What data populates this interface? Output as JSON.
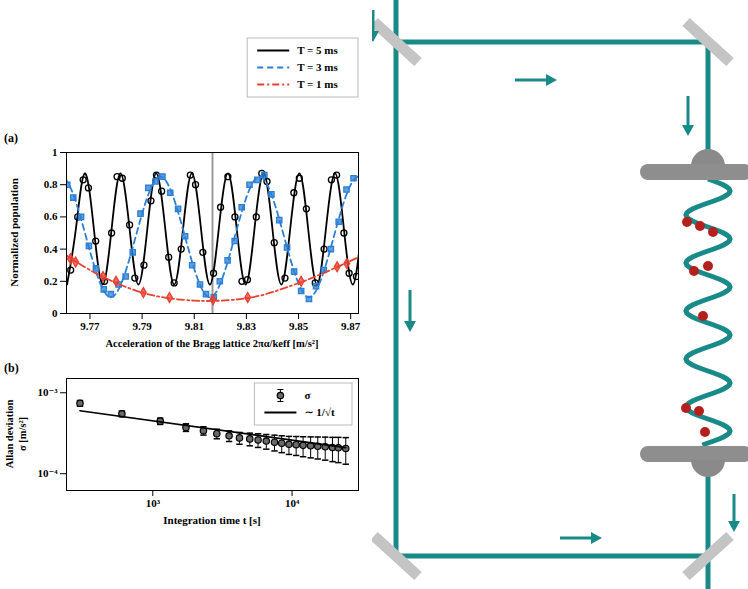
{
  "chart_data": [
    {
      "type": "line",
      "panel_label": "(a)",
      "xlabel": "Acceleration of the Bragg lattice 2πα/keff [m/s²]",
      "ylabel": "Normalized population",
      "xlim": [
        9.761,
        9.873
      ],
      "xticks": [
        9.77,
        9.79,
        9.81,
        9.83,
        9.85,
        9.87
      ],
      "ylim": [
        0,
        1
      ],
      "yticks": [
        0,
        0.2,
        0.4,
        0.6,
        0.8,
        1
      ],
      "legend": "above",
      "vline": 9.817,
      "series": [
        {
          "name": "T = 5 ms",
          "color": "#000000",
          "line_style": "solid",
          "marker": "circle",
          "curve": {
            "x": [
              9.7612,
              9.7646,
              9.768,
              9.7715,
              9.7749,
              9.7783,
              9.7817,
              9.7852,
              9.7886,
              9.792,
              9.7954,
              9.7989,
              9.8023,
              9.8057,
              9.8091,
              9.8126,
              9.816,
              9.8194,
              9.8229,
              9.8263,
              9.8297,
              9.8331,
              9.8366,
              9.84,
              9.8434,
              9.8468,
              9.8503,
              9.8537,
              9.8571,
              9.8605,
              9.864,
              9.8674,
              9.8708,
              9.8742
            ],
            "values": [
              0.18,
              0.525,
              0.87,
              0.525,
              0.18,
              0.525,
              0.87,
              0.525,
              0.18,
              0.525,
              0.87,
              0.525,
              0.18,
              0.525,
              0.87,
              0.525,
              0.18,
              0.525,
              0.87,
              0.525,
              0.18,
              0.525,
              0.87,
              0.525,
              0.18,
              0.525,
              0.87,
              0.525,
              0.18,
              0.525,
              0.87,
              0.525,
              0.18,
              0.525
            ]
          },
          "points": {
            "x": [
              9.7626,
              9.7653,
              9.7674,
              9.7694,
              9.7722,
              9.7756,
              9.7783,
              9.7804,
              9.7824,
              9.7852,
              9.7872,
              9.7907,
              9.7934,
              9.7955,
              9.7975,
              9.8002,
              9.8023,
              9.805,
              9.8085,
              9.8105,
              9.8133,
              9.8174,
              9.8201,
              9.8229,
              9.8256,
              9.8283,
              9.8304,
              9.8338,
              9.8359,
              9.8379,
              9.8407,
              9.8448,
              9.8482,
              9.8503,
              9.853,
              9.8564,
              9.8598,
              9.8626,
              9.8646,
              9.8674,
              9.8694,
              9.8722
            ],
            "values": [
              0.27,
              0.6,
              0.83,
              0.78,
              0.45,
              0.2,
              0.5,
              0.85,
              0.84,
              0.55,
              0.22,
              0.3,
              0.7,
              0.86,
              0.76,
              0.35,
              0.19,
              0.4,
              0.86,
              0.8,
              0.38,
              0.25,
              0.66,
              0.85,
              0.6,
              0.2,
              0.21,
              0.6,
              0.87,
              0.82,
              0.44,
              0.22,
              0.75,
              0.84,
              0.65,
              0.19,
              0.4,
              0.83,
              0.86,
              0.5,
              0.25,
              0.23
            ]
          }
        },
        {
          "name": "T = 3 ms",
          "color": "#2b7fd4",
          "line_style": "dashed",
          "marker": "square",
          "curve": {
            "x": [
              9.7495,
              9.759,
              9.7685,
              9.778,
              9.7875,
              9.797,
              9.8065,
              9.816,
              9.8255,
              9.835,
              9.8445,
              9.854,
              9.8635,
              9.873,
              9.8825
            ],
            "values": [
              0.475,
              0.85,
              0.475,
              0.1,
              0.475,
              0.85,
              0.475,
              0.1,
              0.475,
              0.85,
              0.475,
              0.1,
              0.475,
              0.85,
              0.475
            ]
          },
          "points": {
            "x": [
              9.7613,
              9.7636,
              9.7666,
              9.7696,
              9.7723,
              9.7753,
              9.778,
              9.781,
              9.7837,
              9.7864,
              9.7894,
              9.7924,
              9.7951,
              9.7978,
              9.8008,
              9.8038,
              9.8065,
              9.8092,
              9.8122,
              9.8145,
              9.8175,
              9.8198,
              9.8228,
              9.8255,
              9.8282,
              9.8312,
              9.8342,
              9.8369,
              9.8396,
              9.8426,
              9.8456,
              9.8483,
              9.851,
              9.854,
              9.8567,
              9.8597,
              9.8624,
              9.8654,
              9.8684,
              9.8711
            ],
            "values": [
              0.8,
              0.72,
              0.6,
              0.42,
              0.28,
              0.15,
              0.12,
              0.18,
              0.23,
              0.38,
              0.62,
              0.78,
              0.82,
              0.85,
              0.75,
              0.65,
              0.48,
              0.3,
              0.18,
              0.12,
              0.1,
              0.2,
              0.33,
              0.45,
              0.66,
              0.8,
              0.83,
              0.86,
              0.74,
              0.58,
              0.41,
              0.26,
              0.14,
              0.09,
              0.17,
              0.27,
              0.4,
              0.57,
              0.77,
              0.84
            ]
          }
        },
        {
          "name": "T = 1 ms",
          "color": "#e8402f",
          "line_style": "dashdot",
          "marker": "diamond",
          "curve": {
            "x": [
              9.761,
              9.77,
              9.78,
              9.79,
              9.8,
              9.81,
              9.817,
              9.825,
              9.835,
              9.845,
              9.855,
              9.865,
              9.873
            ],
            "values": [
              0.36,
              0.27,
              0.19,
              0.13,
              0.095,
              0.08,
              0.078,
              0.085,
              0.11,
              0.16,
              0.22,
              0.29,
              0.35
            ]
          },
          "points": {
            "x": [
              9.7625,
              9.7645,
              9.775,
              9.78,
              9.7905,
              9.8005,
              9.8172,
              9.8305,
              9.851,
              9.8648,
              9.8685
            ],
            "values": [
              0.34,
              0.32,
              0.23,
              0.2,
              0.13,
              0.1,
              0.085,
              0.1,
              0.2,
              0.29,
              0.31
            ]
          }
        }
      ]
    },
    {
      "type": "scatter",
      "panel_label": "(b)",
      "log": true,
      "xlabel": "Integration time t [s]",
      "ylabel": "Allan deviation σ [m/s²]",
      "xlim": [
        240,
        30000
      ],
      "xticks": [
        {
          "value": 1000,
          "label": "10³"
        },
        {
          "value": 10000,
          "label": "10⁴"
        }
      ],
      "ylim": [
        6.2e-05,
        0.0015
      ],
      "yticks": [
        {
          "value": 0.001,
          "label": "10⁻³"
        },
        {
          "value": 0.0001,
          "label": "10⁻⁴"
        }
      ],
      "legend": "top-right",
      "series": [
        {
          "name": "σ",
          "type": "scatter",
          "color": "#000000",
          "marker": "circle",
          "x": [
            300,
            600,
            1130,
            1730,
            2310,
            2880,
            3530,
            4190,
            4970,
            5700,
            6530,
            7480,
            8430,
            9500,
            10700,
            12000,
            13600,
            15300,
            17300,
            19500,
            21500,
            24300
          ],
          "values": [
            0.000742,
            0.00055,
            0.000446,
            0.000373,
            0.00034,
            0.000312,
            0.000294,
            0.000277,
            0.000269,
            0.000261,
            0.000253,
            0.000245,
            0.000238,
            0.000231,
            0.000228,
            0.000224,
            0.000221,
            0.000218,
            0.000215,
            0.000211,
            0.000209,
            0.000205
          ],
          "errors": [
            6e-05,
            4.5e-05,
            4e-05,
            4e-05,
            4e-05,
            4.2e-05,
            4.4e-05,
            4.6e-05,
            4.8e-05,
            5e-05,
            5.2e-05,
            5.4e-05,
            5.6e-05,
            5.8e-05,
            6e-05,
            6.2e-05,
            6.4e-05,
            6.6e-05,
            6.8e-05,
            7e-05,
            7.2e-05,
            7.4e-05
          ]
        },
        {
          "name": "∼ 1/√t",
          "type": "line",
          "color": "#000000",
          "line_style": "solid",
          "x": [
            300,
            24300
          ],
          "values": [
            0.0006,
            0.00021
          ]
        }
      ]
    }
  ]
}
